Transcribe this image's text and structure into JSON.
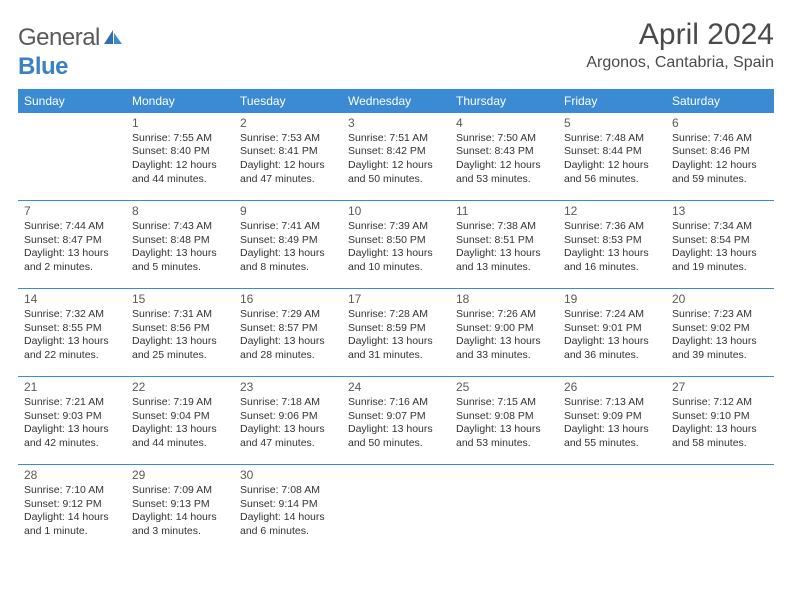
{
  "brand": {
    "part1": "General",
    "part2": "Blue"
  },
  "title": "April 2024",
  "location": "Argonos, Cantabria, Spain",
  "colors": {
    "header_bg": "#3b8bd4",
    "header_text": "#ffffff",
    "border": "#3b8bd4",
    "logo_gray": "#5a5a5a",
    "logo_blue": "#3b7fc4",
    "text": "#333333"
  },
  "day_headers": [
    "Sunday",
    "Monday",
    "Tuesday",
    "Wednesday",
    "Thursday",
    "Friday",
    "Saturday"
  ],
  "weeks": [
    [
      null,
      {
        "n": "1",
        "sr": "7:55 AM",
        "ss": "8:40 PM",
        "dl": "12 hours and 44 minutes."
      },
      {
        "n": "2",
        "sr": "7:53 AM",
        "ss": "8:41 PM",
        "dl": "12 hours and 47 minutes."
      },
      {
        "n": "3",
        "sr": "7:51 AM",
        "ss": "8:42 PM",
        "dl": "12 hours and 50 minutes."
      },
      {
        "n": "4",
        "sr": "7:50 AM",
        "ss": "8:43 PM",
        "dl": "12 hours and 53 minutes."
      },
      {
        "n": "5",
        "sr": "7:48 AM",
        "ss": "8:44 PM",
        "dl": "12 hours and 56 minutes."
      },
      {
        "n": "6",
        "sr": "7:46 AM",
        "ss": "8:46 PM",
        "dl": "12 hours and 59 minutes."
      }
    ],
    [
      {
        "n": "7",
        "sr": "7:44 AM",
        "ss": "8:47 PM",
        "dl": "13 hours and 2 minutes."
      },
      {
        "n": "8",
        "sr": "7:43 AM",
        "ss": "8:48 PM",
        "dl": "13 hours and 5 minutes."
      },
      {
        "n": "9",
        "sr": "7:41 AM",
        "ss": "8:49 PM",
        "dl": "13 hours and 8 minutes."
      },
      {
        "n": "10",
        "sr": "7:39 AM",
        "ss": "8:50 PM",
        "dl": "13 hours and 10 minutes."
      },
      {
        "n": "11",
        "sr": "7:38 AM",
        "ss": "8:51 PM",
        "dl": "13 hours and 13 minutes."
      },
      {
        "n": "12",
        "sr": "7:36 AM",
        "ss": "8:53 PM",
        "dl": "13 hours and 16 minutes."
      },
      {
        "n": "13",
        "sr": "7:34 AM",
        "ss": "8:54 PM",
        "dl": "13 hours and 19 minutes."
      }
    ],
    [
      {
        "n": "14",
        "sr": "7:32 AM",
        "ss": "8:55 PM",
        "dl": "13 hours and 22 minutes."
      },
      {
        "n": "15",
        "sr": "7:31 AM",
        "ss": "8:56 PM",
        "dl": "13 hours and 25 minutes."
      },
      {
        "n": "16",
        "sr": "7:29 AM",
        "ss": "8:57 PM",
        "dl": "13 hours and 28 minutes."
      },
      {
        "n": "17",
        "sr": "7:28 AM",
        "ss": "8:59 PM",
        "dl": "13 hours and 31 minutes."
      },
      {
        "n": "18",
        "sr": "7:26 AM",
        "ss": "9:00 PM",
        "dl": "13 hours and 33 minutes."
      },
      {
        "n": "19",
        "sr": "7:24 AM",
        "ss": "9:01 PM",
        "dl": "13 hours and 36 minutes."
      },
      {
        "n": "20",
        "sr": "7:23 AM",
        "ss": "9:02 PM",
        "dl": "13 hours and 39 minutes."
      }
    ],
    [
      {
        "n": "21",
        "sr": "7:21 AM",
        "ss": "9:03 PM",
        "dl": "13 hours and 42 minutes."
      },
      {
        "n": "22",
        "sr": "7:19 AM",
        "ss": "9:04 PM",
        "dl": "13 hours and 44 minutes."
      },
      {
        "n": "23",
        "sr": "7:18 AM",
        "ss": "9:06 PM",
        "dl": "13 hours and 47 minutes."
      },
      {
        "n": "24",
        "sr": "7:16 AM",
        "ss": "9:07 PM",
        "dl": "13 hours and 50 minutes."
      },
      {
        "n": "25",
        "sr": "7:15 AM",
        "ss": "9:08 PM",
        "dl": "13 hours and 53 minutes."
      },
      {
        "n": "26",
        "sr": "7:13 AM",
        "ss": "9:09 PM",
        "dl": "13 hours and 55 minutes."
      },
      {
        "n": "27",
        "sr": "7:12 AM",
        "ss": "9:10 PM",
        "dl": "13 hours and 58 minutes."
      }
    ],
    [
      {
        "n": "28",
        "sr": "7:10 AM",
        "ss": "9:12 PM",
        "dl": "14 hours and 1 minute."
      },
      {
        "n": "29",
        "sr": "7:09 AM",
        "ss": "9:13 PM",
        "dl": "14 hours and 3 minutes."
      },
      {
        "n": "30",
        "sr": "7:08 AM",
        "ss": "9:14 PM",
        "dl": "14 hours and 6 minutes."
      },
      null,
      null,
      null,
      null
    ]
  ],
  "labels": {
    "sunrise": "Sunrise: ",
    "sunset": "Sunset: ",
    "daylight": "Daylight: "
  }
}
